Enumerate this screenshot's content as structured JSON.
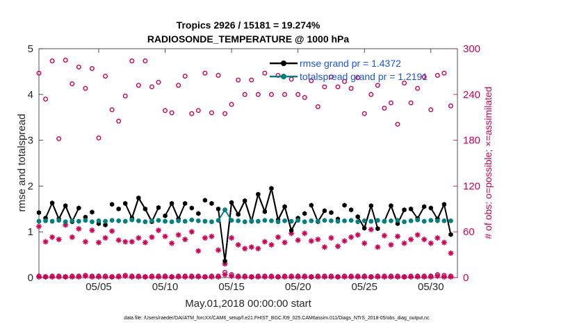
{
  "chart_data": {
    "type": "line",
    "title": "Tropics 2926 / 15181 = 19.274%",
    "subtitle": "RADIOSONDE_TEMPERATURE @ 1000 hPa",
    "xlabel": "May.01,2018 00:00:00 start",
    "ylabel": "rmse and totalspread",
    "ylabel_right": "# of obs: o=possible; ×=assimilated",
    "xlim": [
      0.5,
      32.0
    ],
    "ylim": [
      0,
      5
    ],
    "ylim_right": [
      0,
      300
    ],
    "x_ticks": [
      5,
      10,
      15,
      20,
      25,
      30
    ],
    "x_tick_labels": [
      "05/05",
      "05/10",
      "05/15",
      "05/20",
      "05/25",
      "05/30"
    ],
    "y_ticks": [
      "0",
      "1",
      "2",
      "3",
      "4",
      "5"
    ],
    "y_ticks_right": [
      "0",
      "60",
      "120",
      "180",
      "240",
      "300"
    ],
    "legend": {
      "position": "top-right",
      "entries": [
        "rmse grand pr = 1.4372",
        "totalspread grand pr = 1.2191"
      ]
    },
    "footnote": "data file: /Users/raeder/DAI/ATM_forcXX/CAM6_setup/f.e21.FHIST_BGC.f09_025.CAM6assim.011/Diags_NTrS_2018-05/obs_diag_output.nc",
    "series": [
      {
        "name": "rmse",
        "color": "#000000",
        "marker": "hexagon-filled",
        "x": [
          0.5,
          1,
          1.5,
          2,
          2.5,
          3,
          3.5,
          4,
          4.5,
          5,
          5.5,
          6,
          6.5,
          7,
          7.5,
          8,
          8.5,
          9,
          9.5,
          10,
          10.5,
          11,
          11.5,
          12,
          12.5,
          13,
          13.5,
          14,
          14.5,
          15,
          15.5,
          16,
          16.5,
          17,
          17.5,
          18,
          18.5,
          19,
          19.5,
          20,
          20.5,
          21,
          21.5,
          22,
          22.5,
          23,
          23.5,
          24,
          24.5,
          25,
          25.5,
          26,
          26.5,
          27,
          27.5,
          28,
          28.5,
          29,
          29.5,
          30,
          30.5,
          31,
          31.5
        ],
        "values": [
          1.42,
          1.3,
          1.63,
          1.28,
          1.57,
          1.22,
          1.52,
          1.32,
          1.43,
          1.18,
          1.15,
          1.6,
          1.5,
          1.62,
          1.3,
          1.74,
          1.5,
          1.22,
          1.53,
          1.35,
          1.62,
          1.28,
          1.62,
          1.52,
          1.4,
          1.69,
          1.62,
          1.5,
          0.36,
          1.64,
          1.38,
          1.68,
          1.23,
          1.82,
          1.44,
          1.95,
          1.26,
          1.55,
          1.03,
          1.3,
          1.4,
          1.58,
          1.22,
          1.46,
          1.42,
          1.28,
          1.58,
          1.48,
          1.33,
          1.08,
          1.57,
          1.07,
          1.23,
          1.57,
          1.18,
          1.48,
          1.5,
          1.29,
          1.55,
          1.52,
          1.28,
          1.6,
          0.94
        ]
      },
      {
        "name": "totalspread",
        "color": "#008080",
        "marker": "circle-filled",
        "x": [
          0.5,
          1,
          1.5,
          2,
          2.5,
          3,
          3.5,
          4,
          4.5,
          5,
          5.5,
          6,
          6.5,
          7,
          7.5,
          8,
          8.5,
          9,
          9.5,
          10,
          10.5,
          11,
          11.5,
          12,
          12.5,
          13,
          13.5,
          14,
          14.5,
          15,
          15.5,
          16,
          16.5,
          17,
          17.5,
          18,
          18.5,
          19,
          19.5,
          20,
          20.5,
          21,
          21.5,
          22,
          22.5,
          23,
          23.5,
          24,
          24.5,
          25,
          25.5,
          26,
          26.5,
          27,
          27.5,
          28,
          28.5,
          29,
          29.5,
          30,
          30.5,
          31,
          31.5
        ],
        "values": [
          1.23,
          1.24,
          1.23,
          1.25,
          1.22,
          1.24,
          1.23,
          1.25,
          1.22,
          1.24,
          1.23,
          1.25,
          1.24,
          1.23,
          1.26,
          1.24,
          1.22,
          1.24,
          1.25,
          1.23,
          1.22,
          1.24,
          1.23,
          1.26,
          1.24,
          1.23,
          1.22,
          1.25,
          1.48,
          1.25,
          1.24,
          1.22,
          1.24,
          1.23,
          1.25,
          1.24,
          1.22,
          1.24,
          1.23,
          1.25,
          1.22,
          1.24,
          1.23,
          1.25,
          1.24,
          1.23,
          1.24,
          1.25,
          1.22,
          1.24,
          1.23,
          1.25,
          1.23,
          1.24,
          1.25,
          1.22,
          1.24,
          1.26,
          1.23,
          1.25,
          1.24,
          1.24,
          1.24
        ]
      },
      {
        "name": "possible obs",
        "axis": "right",
        "color": "#cc0055",
        "marker": "open-circle",
        "x": [
          0.5,
          1,
          1.5,
          2,
          2.5,
          3,
          3.5,
          4,
          4.5,
          5,
          5.5,
          6,
          6.5,
          7,
          7.5,
          8,
          8.5,
          9,
          9.5,
          10,
          10.5,
          11,
          11.5,
          12,
          12.5,
          13,
          13.5,
          14,
          14.5,
          15,
          15.5,
          16,
          16.5,
          17,
          17.5,
          18,
          18.5,
          19,
          19.5,
          20,
          20.5,
          21,
          21.5,
          22,
          22.5,
          23,
          23.5,
          24,
          24.5,
          25,
          25.5,
          26,
          26.5,
          27,
          27.5,
          28,
          28.5,
          29,
          29.5,
          30,
          30.5,
          31,
          31.5
        ],
        "values": [
          268,
          234,
          284,
          182,
          285,
          254,
          276,
          248,
          274,
          183,
          264,
          220,
          205,
          238,
          284,
          252,
          284,
          250,
          256,
          219,
          216,
          252,
          264,
          215,
          219,
          268,
          216,
          265,
          215,
          227,
          259,
          240,
          259,
          240,
          268,
          240,
          265,
          240,
          260,
          240,
          236,
          258,
          224,
          250,
          263,
          250,
          257,
          248,
          262,
          215,
          240,
          252,
          222,
          229,
          201,
          255,
          229,
          248,
          263,
          220,
          265,
          268,
          225
        ]
      },
      {
        "name": "assimilated obs",
        "axis": "right",
        "color": "#cc0055",
        "marker": "asterisk",
        "x": [
          0.5,
          1,
          1.5,
          2,
          2.5,
          3,
          3.5,
          4,
          4.5,
          5,
          5.5,
          6,
          6.5,
          7,
          7.5,
          8,
          8.5,
          9,
          9.5,
          10,
          10.5,
          11,
          11.5,
          12,
          12.5,
          13,
          13.5,
          14,
          14.5,
          15,
          15.5,
          16,
          16.5,
          17,
          17.5,
          18,
          18.5,
          19,
          19.5,
          20,
          20.5,
          21,
          21.5,
          22,
          22.5,
          23,
          23.5,
          24,
          24.5,
          25,
          25.5,
          26,
          26.5,
          27,
          27.5,
          28,
          28.5,
          29,
          29.5,
          30,
          30.5,
          31,
          31.5
        ],
        "values": [
          67,
          47,
          53,
          50,
          69,
          53,
          64,
          47,
          62,
          46,
          52,
          61,
          49,
          47,
          47,
          52,
          46,
          53,
          62,
          54,
          45,
          56,
          50,
          60,
          35,
          52,
          54,
          36,
          18,
          52,
          43,
          38,
          40,
          38,
          47,
          43,
          53,
          46,
          58,
          49,
          58,
          48,
          50,
          40,
          52,
          41,
          48,
          53,
          56,
          45,
          63,
          40,
          55,
          43,
          54,
          45,
          50,
          56,
          50,
          45,
          52,
          46,
          32
        ]
      },
      {
        "name": "possible obs (second set)",
        "axis": "right",
        "color": "#cc0055",
        "marker": "open-circle",
        "x": [
          0.5,
          1,
          1.5,
          2,
          2.5,
          3,
          3.5,
          4,
          4.5,
          5,
          5.5,
          6,
          6.5,
          7,
          7.5,
          8,
          8.5,
          9,
          9.5,
          10,
          10.5,
          11,
          11.5,
          12,
          12.5,
          13,
          13.5,
          14,
          14.5,
          15,
          15.5,
          16,
          16.5,
          17,
          17.5,
          18,
          18.5,
          19,
          19.5,
          20,
          20.5,
          21,
          21.5,
          22,
          22.5,
          23,
          23.5,
          24,
          24.5,
          25,
          25.5,
          26,
          26.5,
          27,
          27.5,
          28,
          28.5,
          29,
          29.5,
          30,
          30.5,
          31,
          31.5
        ],
        "values": [
          2,
          1,
          2,
          2,
          1,
          2,
          2,
          3,
          2,
          2,
          2,
          1,
          2,
          3,
          2,
          2,
          1,
          2,
          2,
          2,
          1,
          2,
          2,
          2,
          2,
          1,
          2,
          2,
          7,
          4,
          2,
          2,
          1,
          2,
          2,
          2,
          1,
          2,
          2,
          2,
          2,
          1,
          2,
          2,
          2,
          1,
          2,
          2,
          2,
          2,
          1,
          2,
          2,
          2,
          2,
          1,
          2,
          2,
          2,
          2,
          4,
          3,
          2
        ]
      },
      {
        "name": "assimilated obs (second set)",
        "axis": "right",
        "color": "#cc0055",
        "marker": "asterisk",
        "x": [
          0.5,
          1,
          1.5,
          2,
          2.5,
          3,
          3.5,
          4,
          4.5,
          5,
          5.5,
          6,
          6.5,
          7,
          7.5,
          8,
          8.5,
          9,
          9.5,
          10,
          10.5,
          11,
          11.5,
          12,
          12.5,
          13,
          13.5,
          14,
          14.5,
          15,
          15.5,
          16,
          16.5,
          17,
          17.5,
          18,
          18.5,
          19,
          19.5,
          20,
          20.5,
          21,
          21.5,
          22,
          22.5,
          23,
          23.5,
          24,
          24.5,
          25,
          25.5,
          26,
          26.5,
          27,
          27.5,
          28,
          28.5,
          29,
          29.5,
          30,
          30.5,
          31,
          31.5
        ],
        "values": [
          1,
          1,
          1,
          1,
          1,
          1,
          1,
          2,
          1,
          1,
          1,
          1,
          1,
          2,
          1,
          1,
          1,
          1,
          1,
          1,
          1,
          1,
          1,
          1,
          1,
          1,
          1,
          1,
          4,
          2,
          1,
          1,
          1,
          1,
          1,
          1,
          1,
          1,
          1,
          1,
          1,
          1,
          1,
          1,
          1,
          1,
          1,
          1,
          1,
          1,
          1,
          1,
          1,
          1,
          1,
          1,
          1,
          1,
          1,
          1,
          2,
          1,
          1
        ]
      }
    ]
  }
}
